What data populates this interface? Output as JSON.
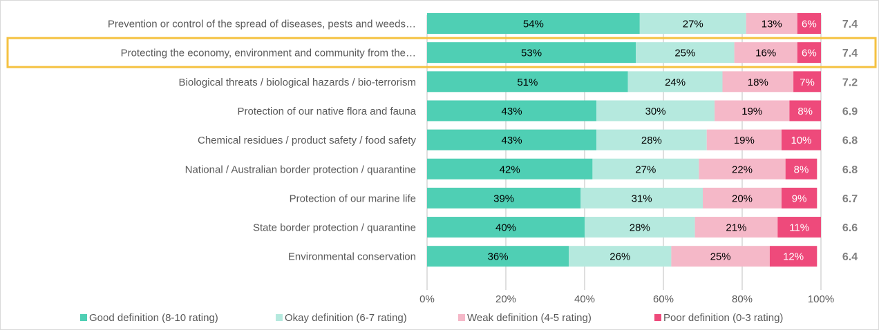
{
  "chart_data": {
    "type": "bar",
    "orientation": "horizontal",
    "stacked": true,
    "categories": [
      "Prevention or control of the spread of diseases, pests and weeds…",
      "Protecting the economy, environment and community from the…",
      "Biological threats / biological hazards / bio-terrorism",
      "Protection of our native flora and fauna",
      "Chemical residues / product safety / food safety",
      "National / Australian border protection / quarantine",
      "Protection of our marine life",
      "State border protection / quarantine",
      "Environmental conservation"
    ],
    "series": [
      {
        "name": "Good definition (8-10 rating)",
        "values": [
          54,
          53,
          51,
          43,
          43,
          42,
          39,
          40,
          36
        ],
        "labels": [
          "54%",
          "53%",
          "51%",
          "43%",
          "43%",
          "42%",
          "39%",
          "40%",
          "36%"
        ]
      },
      {
        "name": "Okay definition (6-7 rating)",
        "values": [
          27,
          25,
          24,
          30,
          28,
          27,
          31,
          28,
          26
        ],
        "labels": [
          "27%",
          "25%",
          "24%",
          "30%",
          "28%",
          "27%",
          "31%",
          "28%",
          "26%"
        ]
      },
      {
        "name": "Weak definition (4-5 rating)",
        "values": [
          13,
          16,
          18,
          19,
          19,
          22,
          20,
          21,
          25
        ],
        "labels": [
          "13%",
          "16%",
          "18%",
          "19%",
          "19%",
          "22%",
          "20%",
          "21%",
          "25%"
        ]
      },
      {
        "name": "Poor definition (0-3 rating)",
        "values": [
          6,
          6,
          7,
          8,
          10,
          8,
          9,
          11,
          12
        ],
        "labels": [
          "6%",
          "6%",
          "7%",
          "8%",
          "10%",
          "8%",
          "9%",
          "11%",
          "12%"
        ]
      }
    ],
    "mean_scores": [
      "7.4",
      "7.4",
      "7.2",
      "6.9",
      "6.8",
      "6.8",
      "6.7",
      "6.6",
      "6.4"
    ],
    "highlighted_category_index": 1,
    "xlim": [
      0,
      100
    ],
    "x_ticks": [
      0,
      20,
      40,
      60,
      80,
      100
    ],
    "x_tick_labels": [
      "0%",
      "20%",
      "40%",
      "60%",
      "80%",
      "100%"
    ],
    "grid": true,
    "legend_position": "bottom",
    "colors": {
      "good": "#4fcfb4",
      "okay": "#b5e9de",
      "weak": "#f5b8c8",
      "poor": "#ee4a7b",
      "highlight": "#f5c242",
      "grid": "#bfbfbf",
      "score": "#7f7f7f",
      "text": "#595959"
    }
  }
}
